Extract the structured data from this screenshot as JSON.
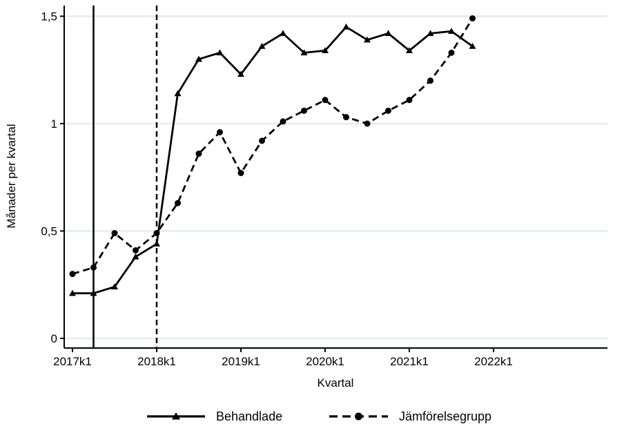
{
  "chart_data": {
    "type": "line",
    "xlabel": "Kvartal",
    "ylabel": "Månader per kvartal",
    "x": [
      "2017k1",
      "2017k2",
      "2017k3",
      "2017k4",
      "2018k1",
      "2018k2",
      "2018k3",
      "2018k4",
      "2019k1",
      "2019k2",
      "2019k3",
      "2019k4",
      "2020k1",
      "2020k2",
      "2020k3",
      "2020k4",
      "2021k1",
      "2021k2",
      "2021k3",
      "2021k4"
    ],
    "x_tick_labels": [
      "2017k1",
      "2018k1",
      "2019k1",
      "2020k1",
      "2021k1",
      "2022k1"
    ],
    "y_tick_labels": [
      "0",
      "0,5",
      "1",
      "1,5"
    ],
    "y_ticks": [
      0,
      0.5,
      1,
      1.5
    ],
    "xlim": [
      "2017k1",
      "2022k1"
    ],
    "ylim": [
      0,
      1.5
    ],
    "grid": "horizontal",
    "vertical_lines": [
      {
        "x": "2017k2",
        "style": "solid"
      },
      {
        "x": "2018k1",
        "style": "dashed"
      }
    ],
    "series": [
      {
        "name": "Behandlade",
        "marker": "triangle",
        "line_style": "solid",
        "values": [
          0.21,
          0.21,
          0.24,
          0.38,
          0.44,
          1.14,
          1.3,
          1.33,
          1.23,
          1.36,
          1.42,
          1.33,
          1.34,
          1.45,
          1.39,
          1.42,
          1.34,
          1.42,
          1.43,
          1.36
        ]
      },
      {
        "name": "Jämförelsegrupp",
        "marker": "circle",
        "line_style": "dashed",
        "values": [
          0.3,
          0.33,
          0.49,
          0.41,
          0.49,
          0.63,
          0.86,
          0.96,
          0.77,
          0.92,
          1.01,
          1.06,
          1.11,
          1.03,
          1.0,
          1.06,
          1.11,
          1.2,
          1.33,
          1.49
        ]
      }
    ],
    "legend_position": "bottom",
    "colors": {
      "line": "#000000",
      "grid": "#e3ecf1",
      "background": "#ffffff"
    }
  }
}
